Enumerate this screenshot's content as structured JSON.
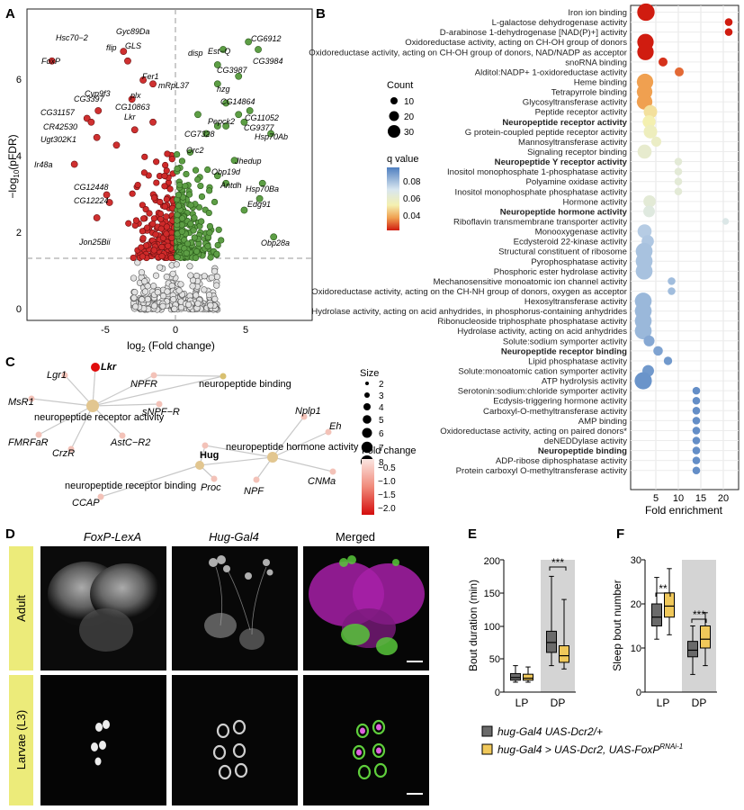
{
  "panel_letters": [
    "A",
    "B",
    "C",
    "D",
    "E",
    "F"
  ],
  "panelA": {
    "xlabel_pre": "log",
    "xlabel_sub": "2",
    "xlabel_post": " (Fold change)",
    "ylabel_pre": "−log",
    "ylabel_sub": "10",
    "ylabel_post": "(pFDR)",
    "xticks": [
      "-5",
      "0",
      "5"
    ],
    "yticks": [
      "0",
      "2",
      "4",
      "6"
    ],
    "genes": [
      "Hsc70−2",
      "FoxP",
      "Gyc89Da",
      "flip",
      "GLS",
      "Fer1",
      "mRpL37",
      "Cyp9f3",
      "plx",
      "CG10863",
      "Lkr",
      "CG3397",
      "CG31157",
      "CR42530",
      "Ugt302K1",
      "Ir48a",
      "CG12448",
      "CG12224",
      "Jon25Bii",
      "disp",
      "Est−Q",
      "CG6912",
      "CG3984",
      "CG3987",
      "hzg",
      "CG14864",
      "Pepck2",
      "CG11052",
      "CG9377",
      "CG7328",
      "Hsp70Ab",
      "Orc2",
      "Jhedup",
      "Obp19d",
      "Antdh",
      "Hsp70Ba",
      "Edg91",
      "Obp28a"
    ]
  },
  "panelB": {
    "terms": [
      "Iron ion binding",
      "L-galactose dehydrogenase activity",
      "D-arabinose 1-dehydrogenase [NAD(P)+] activity",
      "Oxidoreductase activity, acting on CH-OH group of donors",
      "Oxidoreductase activity, acting on CH-OH group of donors, NAD/NADP as acceptor",
      "snoRNA binding",
      "Alditol:NADP+ 1-oxidoreductase activity",
      "Heme binding",
      "Tetrapyrrole binding",
      "Glycosyltransferase activity",
      "Peptide receptor activity",
      "Neuropeptide receptor activity",
      "G protein-coupled peptide receptor activity",
      "Mannosyltransferase activity",
      "Signaling receptor binding",
      "Neuropeptide Y receptor activity",
      "Inositol monophosphate 1-phosphatase activity",
      "Polyamine oxidase activity",
      "Inositol monophosphate phosphatase activity",
      "Hormone activity",
      "Neuropeptide hormone activity",
      "Riboflavin transmembrane transporter activity",
      "Monooxygenase activity",
      "Ecdysteroid 22-kinase activity",
      "Structural constituent of ribosome",
      "Pyrophosphatase activity",
      "Phosphoric ester hydrolase activity",
      "Mechanosensitive monoatomic ion channel activity",
      "Oxidoreductase activity, acting on the CH-NH group of donors, oxygen as acceptor",
      "Hexosyltransferase activity",
      "Hydrolase activity, acting on acid anhydrides, in phosphorus-containing anhydrides",
      "Ribonucleoside triphosphate phosphatase activity",
      "Hydrolase activity, acting on acid anhydrides",
      "Solute:sodium symporter activity",
      "Neuropeptide receptor binding",
      "Lipid phosphatase activity",
      "Solute:monoatomic cation symporter activity",
      "ATP hydrolysis activity",
      "Serotonin:sodium:chloride symporter activity",
      "Ecdysis-triggering hormone activity",
      "Carboxyl-O-methyltransferase activity",
      "AMP binding",
      "Oxidoreductase activity, acting on paired donors*",
      "deNEDDylase activity",
      "Neuropeptide binding",
      "ADP-ribose diphosphatase activity",
      "Protein carboxyl O-methyltransferase activity"
    ],
    "bold_terms": [
      "Neuropeptide receptor activity",
      "Neuropeptide Y receptor activity",
      "Neuropeptide hormone activity",
      "Neuropeptide receptor binding",
      "Neuropeptide binding"
    ],
    "xlabel": "Fold enrichment",
    "xticks": [
      "5",
      "10",
      "15",
      "20"
    ],
    "count_title": "Count",
    "count_ticks": [
      "10",
      "20",
      "30"
    ],
    "q_title": "q value",
    "q_ticks": [
      "0.08",
      "0.06",
      "0.04"
    ]
  },
  "panelC": {
    "size_title": "Size",
    "size_ticks": [
      "2",
      "3",
      "4",
      "5",
      "6",
      "7",
      "8"
    ],
    "fc_title": "Fold change",
    "fc_ticks": [
      "−0.5",
      "−1.0",
      "−1.5",
      "−2.0"
    ],
    "hub_labels": [
      "neuropeptide binding",
      "neuropeptide receptor activity",
      "neuropeptide hormone activity",
      "neuropeptide receptor binding"
    ],
    "gene_labels": [
      "Lkr",
      "Lgr1",
      "NPFR",
      "MsR1",
      "sNPF−R",
      "FMRFaR",
      "CrzR",
      "AstC−R2",
      "Nplp1",
      "Eh",
      "Hug",
      "Proc",
      "NPF",
      "CNMa",
      "CCAP"
    ]
  },
  "panelD": {
    "col1": "FoxP-LexA",
    "col2": "Hug-Gal4",
    "col3": "Merged",
    "row1": "Adult",
    "row2": "Larvae (L3)"
  },
  "panelE": {
    "ylabel": "Bout duration (min)",
    "yticks": [
      "0",
      "50",
      "100",
      "150",
      "200"
    ],
    "cats": [
      "LP",
      "DP"
    ],
    "sig": "***"
  },
  "panelF": {
    "ylabel": "Sleep bout number",
    "yticks": [
      "0",
      "10",
      "20",
      "30"
    ],
    "cats": [
      "LP",
      "DP"
    ],
    "sig_lp": "**",
    "sig_dp": "***"
  },
  "legend": {
    "ctrl": "hug-Gal4 UAS-Dcr2/+",
    "exp": "hug-Gal4 > UAS-Dcr2, UAS-FoxP",
    "exp_sup": "RNAi-1"
  }
}
